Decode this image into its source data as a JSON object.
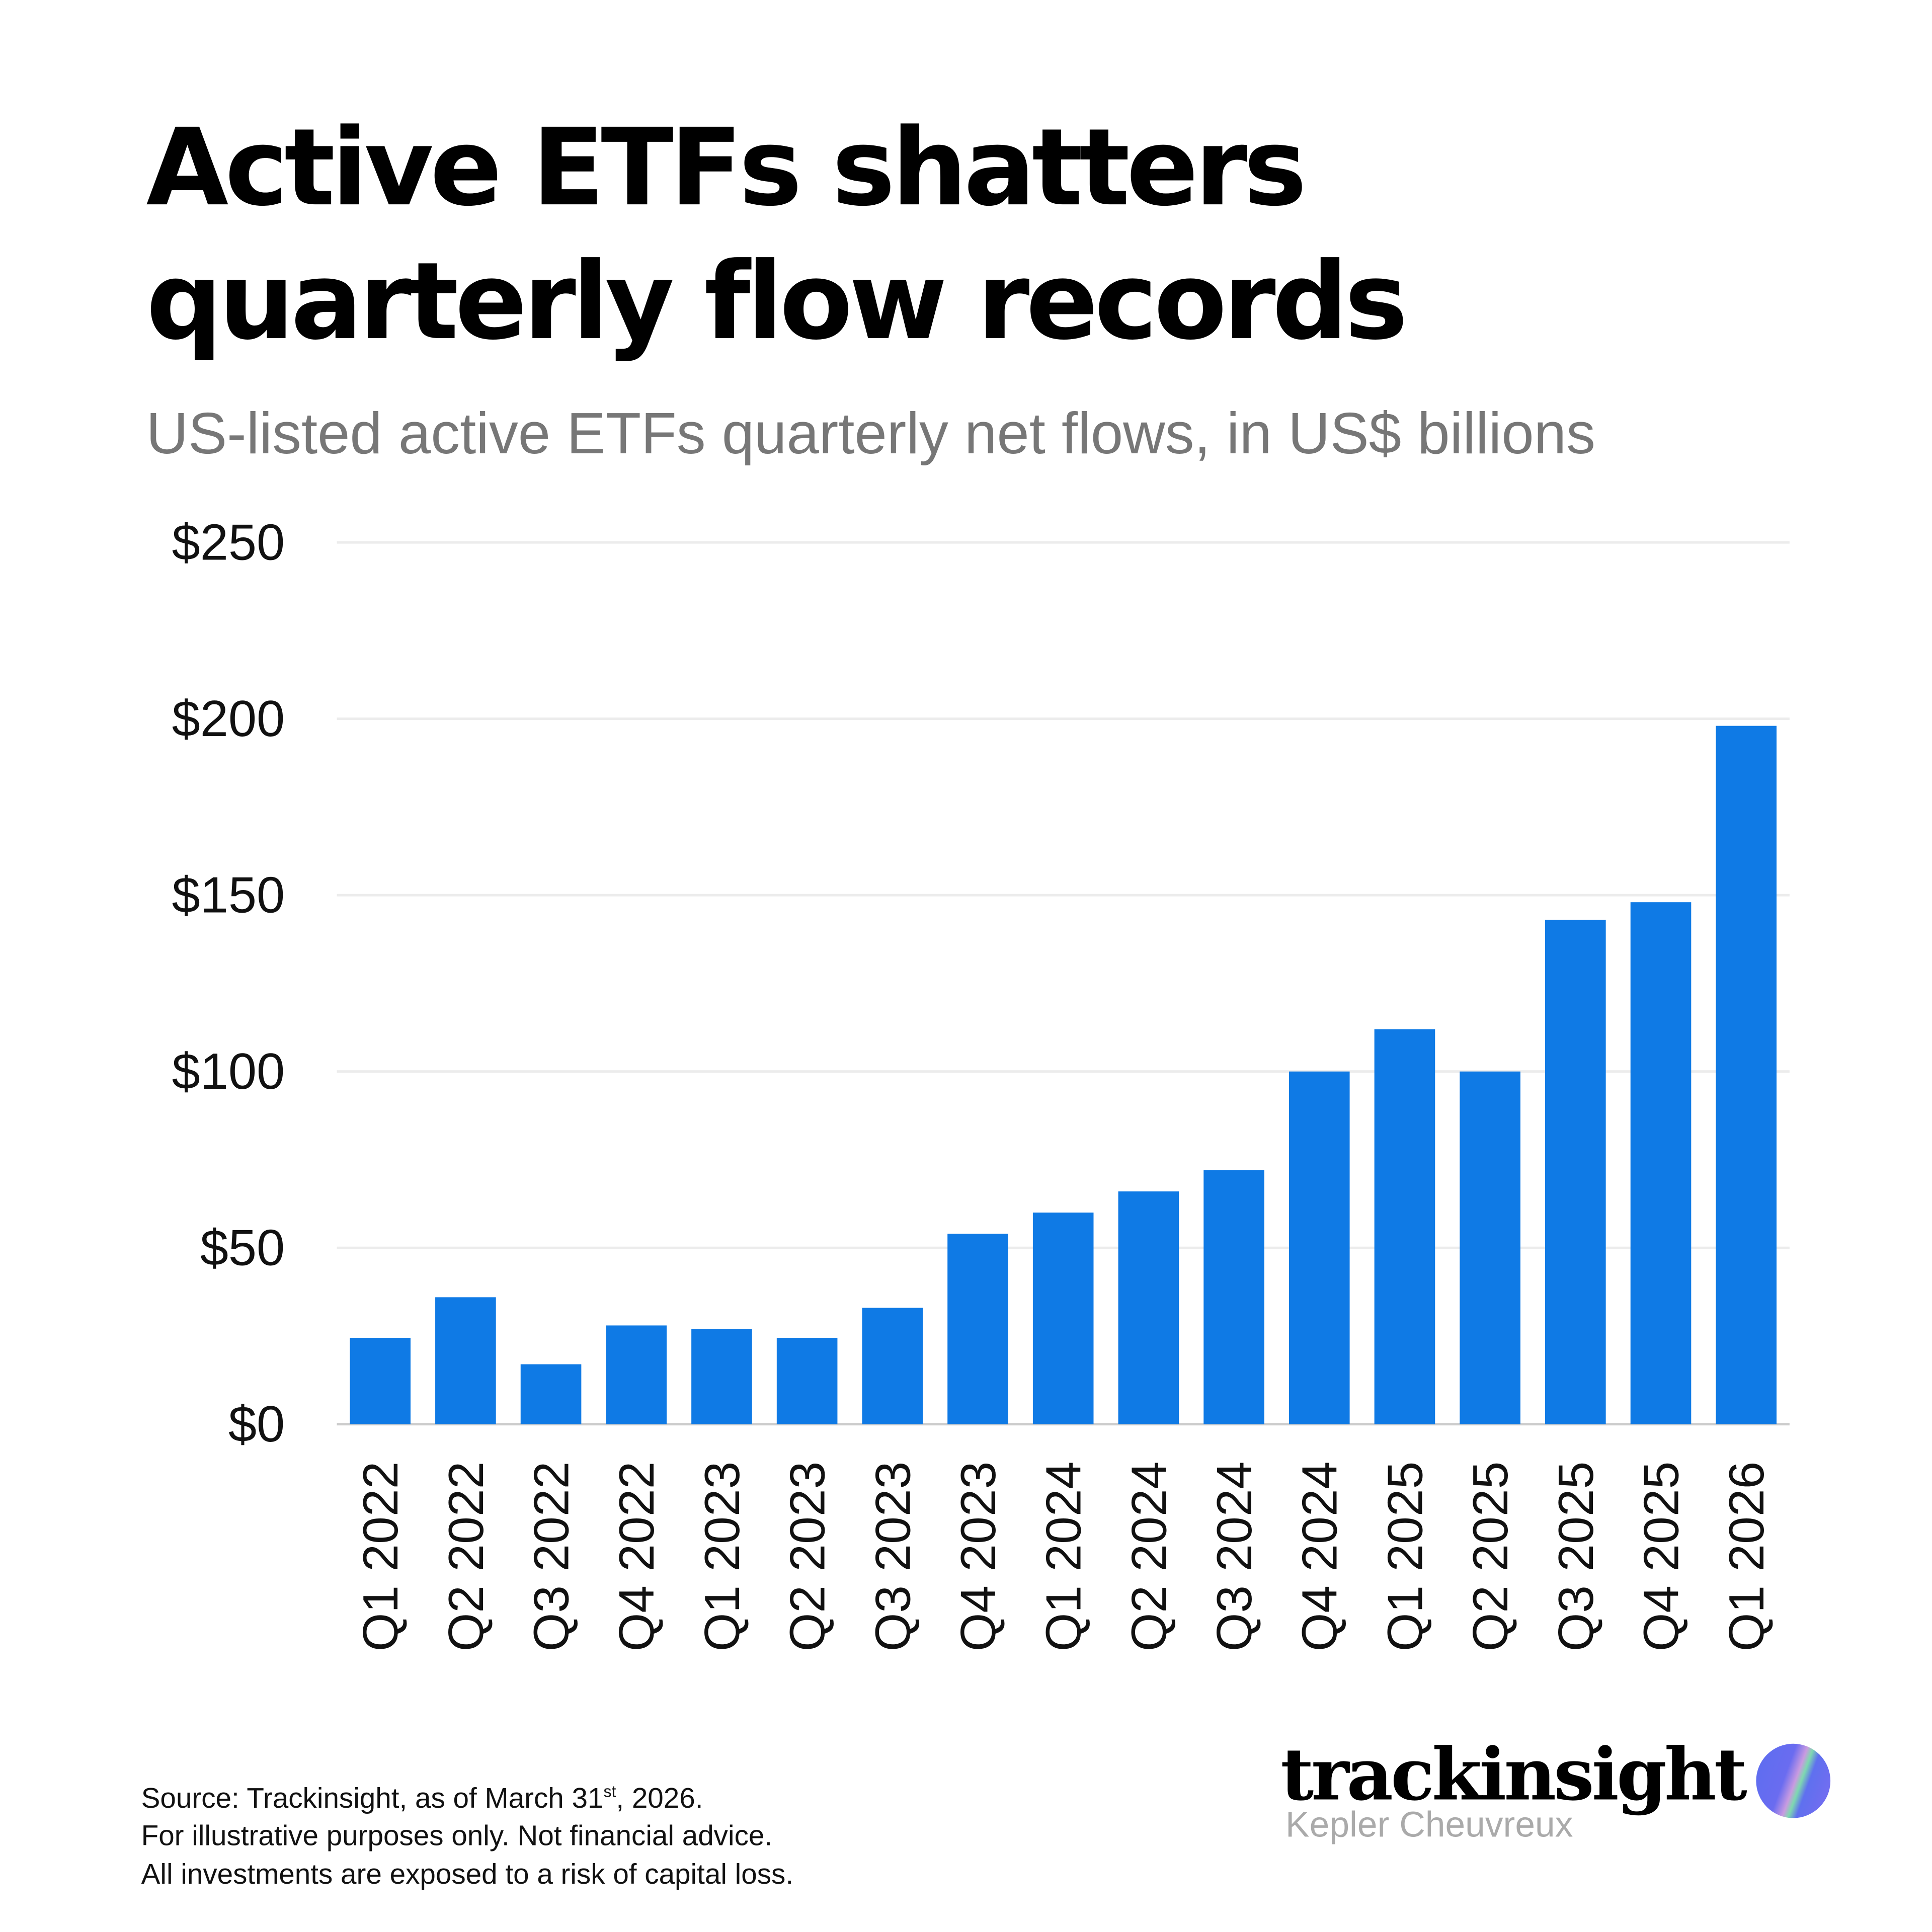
{
  "title_lines": [
    "Active ETFs shatters",
    "quarterly flow records"
  ],
  "subtitle": "US-listed active ETFs quarterly net flows, in US$ billions",
  "chart_data": {
    "type": "bar",
    "title": "Active ETFs shatters quarterly flow records",
    "subtitle": "US-listed active ETFs quarterly net flows, in US$ billions",
    "categories": [
      "Q1 2022",
      "Q2 2022",
      "Q3 2022",
      "Q4 2022",
      "Q1 2023",
      "Q2 2023",
      "Q3 2023",
      "Q4 2023",
      "Q1 2024",
      "Q2 2024",
      "Q3 2024",
      "Q4 2024",
      "Q1 2025",
      "Q2 2025",
      "Q3 2025",
      "Q4 2025",
      "Q1 2026"
    ],
    "values": [
      24.5,
      36,
      17,
      28,
      27,
      24.5,
      33,
      54,
      60,
      66,
      72,
      100,
      112,
      100,
      143,
      148,
      198
    ],
    "ylim": [
      0,
      250
    ],
    "yticks": [
      0,
      50,
      100,
      150,
      200,
      250
    ],
    "ytick_labels": [
      "$0",
      "$50",
      "$100",
      "$150",
      "$200",
      "$250"
    ],
    "xlabel": "",
    "ylabel": "",
    "grid": true,
    "bar_color": "#0f7ae5"
  },
  "footer": {
    "source_prefix": "Source: Trackinsight, as of March 31",
    "source_sup": "st",
    "source_suffix": ", 2026.",
    "line2": "For illustrative purposes only. Not financial advice.",
    "line3": "All investments are exposed to a risk of capital loss."
  },
  "logo": {
    "word": "trackinsight",
    "sub": "Kepler Cheuvreux"
  }
}
